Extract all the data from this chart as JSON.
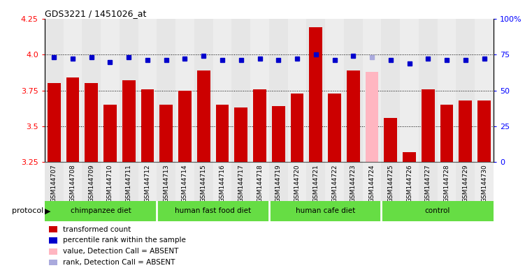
{
  "title": "GDS3221 / 1451026_at",
  "samples": [
    "GSM144707",
    "GSM144708",
    "GSM144709",
    "GSM144710",
    "GSM144711",
    "GSM144712",
    "GSM144713",
    "GSM144714",
    "GSM144715",
    "GSM144716",
    "GSM144717",
    "GSM144718",
    "GSM144719",
    "GSM144720",
    "GSM144721",
    "GSM144722",
    "GSM144723",
    "GSM144724",
    "GSM144725",
    "GSM144726",
    "GSM144727",
    "GSM144728",
    "GSM144729",
    "GSM144730"
  ],
  "bar_values": [
    3.8,
    3.84,
    3.8,
    3.65,
    3.82,
    3.76,
    3.65,
    3.75,
    3.89,
    3.65,
    3.63,
    3.76,
    3.64,
    3.73,
    4.19,
    3.73,
    3.89,
    3.88,
    3.56,
    3.32,
    3.76,
    3.65,
    3.68,
    3.68
  ],
  "bar_colors": [
    "#CC0000",
    "#CC0000",
    "#CC0000",
    "#CC0000",
    "#CC0000",
    "#CC0000",
    "#CC0000",
    "#CC0000",
    "#CC0000",
    "#CC0000",
    "#CC0000",
    "#CC0000",
    "#CC0000",
    "#CC0000",
    "#CC0000",
    "#CC0000",
    "#CC0000",
    "#FFB6C1",
    "#CC0000",
    "#CC0000",
    "#CC0000",
    "#CC0000",
    "#CC0000",
    "#CC0000"
  ],
  "rank_values": [
    73,
    72,
    73,
    70,
    73,
    71,
    71,
    72,
    74,
    71,
    71,
    72,
    71,
    72,
    75,
    71,
    74,
    73,
    71,
    69,
    72,
    71,
    71,
    72
  ],
  "rank_colors": [
    "#0000CC",
    "#0000CC",
    "#0000CC",
    "#0000CC",
    "#0000CC",
    "#0000CC",
    "#0000CC",
    "#0000CC",
    "#0000CC",
    "#0000CC",
    "#0000CC",
    "#0000CC",
    "#0000CC",
    "#0000CC",
    "#0000CC",
    "#0000CC",
    "#0000CC",
    "#AAAADD",
    "#0000CC",
    "#0000CC",
    "#0000CC",
    "#0000CC",
    "#0000CC",
    "#0000CC"
  ],
  "ylim_left": [
    3.25,
    4.25
  ],
  "ylim_right": [
    0,
    100
  ],
  "yticks_left": [
    3.25,
    3.5,
    3.75,
    4.0,
    4.25
  ],
  "yticks_right": [
    0,
    25,
    50,
    75,
    100
  ],
  "hlines": [
    3.5,
    3.75,
    4.0
  ],
  "groups": [
    {
      "label": "chimpanzee diet",
      "start": 0,
      "end": 5
    },
    {
      "label": "human fast food diet",
      "start": 6,
      "end": 11
    },
    {
      "label": "human cafe diet",
      "start": 12,
      "end": 17
    },
    {
      "label": "control",
      "start": 18,
      "end": 23
    }
  ],
  "group_color": "#66DD44",
  "legend_items": [
    {
      "color": "#CC0000",
      "label": "transformed count"
    },
    {
      "color": "#0000CC",
      "label": "percentile rank within the sample"
    },
    {
      "color": "#FFB6C1",
      "label": "value, Detection Call = ABSENT"
    },
    {
      "color": "#AAAADD",
      "label": "rank, Detection Call = ABSENT"
    }
  ]
}
